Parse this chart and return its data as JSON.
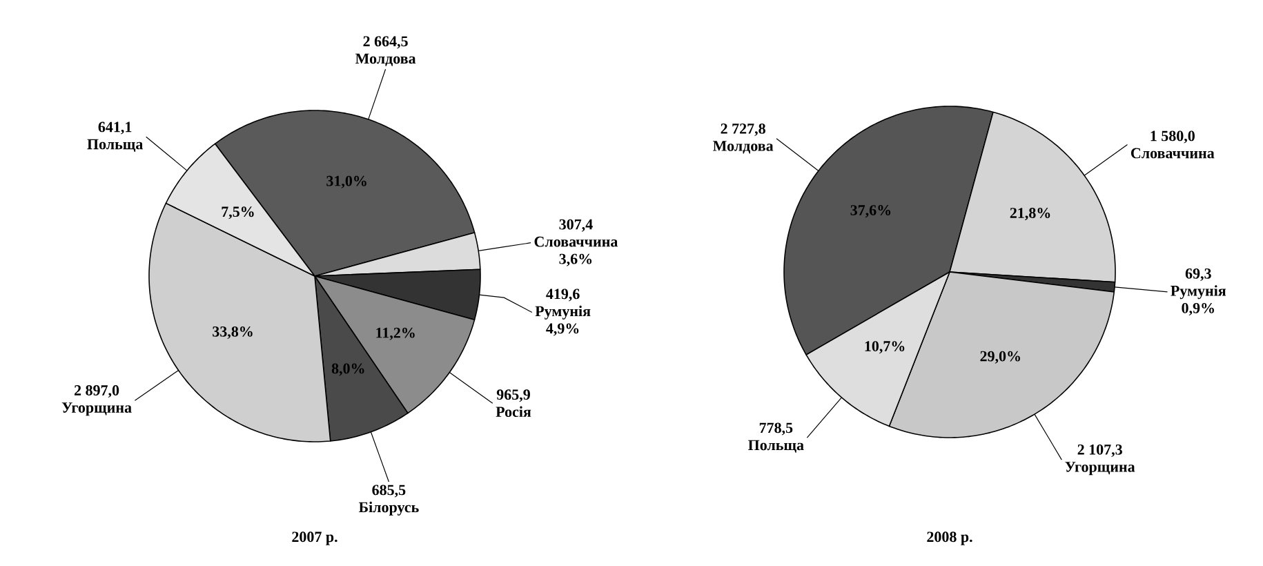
{
  "chart_data": [
    {
      "type": "pie",
      "title": "2007 р.",
      "categories": [
        "Молдова",
        "Словаччина",
        "Румунія",
        "Росія",
        "Білорусь",
        "Угорщина",
        "Польща"
      ],
      "values": [
        2664.5,
        307.4,
        419.6,
        965.9,
        685.5,
        2897.0,
        641.1
      ],
      "colors": [
        "#5a5a5a",
        "#dcdcdc",
        "#333333",
        "#8c8c8c",
        "#4a4a4a",
        "#cfcfcf",
        "#e4e4e4"
      ],
      "value_labels": [
        "2 664,5",
        "307,4",
        "419,6",
        "965,9",
        "685,5",
        "2 897,0",
        "641,1"
      ],
      "annotations": [
        {
          "text": "31,0%",
          "x": "Молдова"
        },
        {
          "text": "3,6%",
          "x": "Словаччина"
        },
        {
          "text": "4,9%",
          "x": "Румунія"
        },
        {
          "text": "11,2%",
          "x": "Росія"
        },
        {
          "text": "8,0%",
          "x": "Білорусь"
        },
        {
          "text": "33,8%",
          "x": "Угорщина"
        },
        {
          "text": "7,5%",
          "x": "Польща"
        }
      ]
    },
    {
      "type": "pie",
      "title": "2008 р.",
      "categories": [
        "Молдова",
        "Словаччина",
        "Румунія",
        "Угорщина",
        "Польща"
      ],
      "values": [
        2727.8,
        1580.0,
        69.3,
        2107.3,
        778.5
      ],
      "colors": [
        "#555555",
        "#d4d4d4",
        "#333333",
        "#c8c8c8",
        "#dedede"
      ],
      "value_labels": [
        "2 727,8",
        "1 580,0",
        "69,3",
        "2 107,3",
        "778,5"
      ],
      "annotations": [
        {
          "text": "37,6%",
          "x": "Молдова"
        },
        {
          "text": "21,8%",
          "x": "Словаччина"
        },
        {
          "text": "0,9%",
          "x": "Румунія"
        },
        {
          "text": "29,0%",
          "x": "Угорщина"
        },
        {
          "text": "10,7%",
          "x": "Польща"
        }
      ]
    }
  ]
}
